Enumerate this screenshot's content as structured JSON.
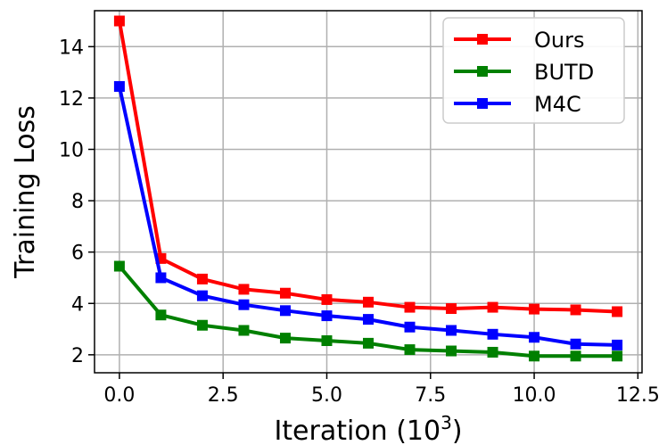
{
  "chart_data": {
    "type": "line",
    "xlabel": "Iteration (10",
    "xlabel_superscript": "3",
    "xlabel_suffix": ")",
    "ylabel": "Training Loss",
    "xlim": [
      -0.6,
      12.6
    ],
    "ylim": [
      1.3,
      15.4
    ],
    "xticks": [
      0.0,
      2.5,
      5.0,
      7.5,
      10.0,
      12.5
    ],
    "xtick_labels": [
      "0.0",
      "2.5",
      "5.0",
      "7.5",
      "10.0",
      "12.5"
    ],
    "yticks": [
      2,
      4,
      6,
      8,
      10,
      12,
      14
    ],
    "ytick_labels": [
      "2",
      "4",
      "6",
      "8",
      "10",
      "12",
      "14"
    ],
    "grid": true,
    "legend_position": "top-right",
    "x": [
      0,
      1,
      2,
      3,
      4,
      5,
      6,
      7,
      8,
      9,
      10,
      11,
      12
    ],
    "series": [
      {
        "name": "Ours",
        "color": "#ff0000",
        "marker": "square",
        "values": [
          15.0,
          5.75,
          4.95,
          4.55,
          4.4,
          4.15,
          4.05,
          3.85,
          3.8,
          3.85,
          3.78,
          3.75,
          3.68
        ]
      },
      {
        "name": "BUTD",
        "color": "#008000",
        "marker": "square",
        "values": [
          5.45,
          3.55,
          3.15,
          2.95,
          2.65,
          2.55,
          2.45,
          2.2,
          2.15,
          2.1,
          1.95,
          1.95,
          1.95
        ]
      },
      {
        "name": "M4C",
        "color": "#0000ff",
        "marker": "square",
        "values": [
          12.45,
          5.0,
          4.3,
          3.95,
          3.72,
          3.52,
          3.38,
          3.08,
          2.95,
          2.8,
          2.68,
          2.42,
          2.38
        ]
      }
    ]
  }
}
